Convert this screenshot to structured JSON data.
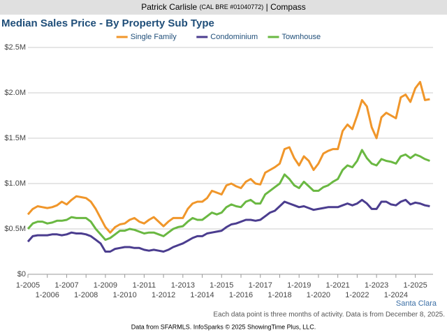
{
  "header": {
    "name": "Patrick Carlisle",
    "license": "(CAL BRE #01040772)",
    "company": "| Compass"
  },
  "chart_data": {
    "type": "line",
    "title": "Median Sales Price - By Property Sub Type",
    "region": "Santa Clara",
    "note": "Each data point is three months of activity. Data is from December 8, 2025.",
    "source": "Data from SFARMLS. InfoSparks © 2025 ShowingTime Plus, LLC.",
    "grid": true,
    "x": [
      "2005-01",
      "2005-04",
      "2005-07",
      "2005-10",
      "2006-01",
      "2006-04",
      "2006-07",
      "2006-10",
      "2007-01",
      "2007-04",
      "2007-07",
      "2007-10",
      "2008-01",
      "2008-04",
      "2008-07",
      "2008-10",
      "2009-01",
      "2009-04",
      "2009-07",
      "2009-10",
      "2010-01",
      "2010-04",
      "2010-07",
      "2010-10",
      "2011-01",
      "2011-04",
      "2011-07",
      "2011-10",
      "2012-01",
      "2012-04",
      "2012-07",
      "2012-10",
      "2013-01",
      "2013-04",
      "2013-07",
      "2013-10",
      "2014-01",
      "2014-04",
      "2014-07",
      "2014-10",
      "2015-01",
      "2015-04",
      "2015-07",
      "2015-10",
      "2016-01",
      "2016-04",
      "2016-07",
      "2016-10",
      "2017-01",
      "2017-04",
      "2017-07",
      "2017-10",
      "2018-01",
      "2018-04",
      "2018-07",
      "2018-10",
      "2019-01",
      "2019-04",
      "2019-07",
      "2019-10",
      "2020-01",
      "2020-04",
      "2020-07",
      "2020-10",
      "2021-01",
      "2021-04",
      "2021-07",
      "2021-10",
      "2022-01",
      "2022-04",
      "2022-07",
      "2022-10",
      "2023-01",
      "2023-04",
      "2023-07",
      "2023-10",
      "2024-01",
      "2024-04",
      "2024-07",
      "2024-10",
      "2025-01",
      "2025-04",
      "2025-07",
      "2025-10"
    ],
    "xlim": [
      "2005-01",
      "2025-12"
    ],
    "xticks": [
      {
        "value": "2005-01",
        "label": "1-2005"
      },
      {
        "value": "2006-01",
        "label": "1-2006"
      },
      {
        "value": "2007-01",
        "label": "1-2007"
      },
      {
        "value": "2008-01",
        "label": "1-2008"
      },
      {
        "value": "2009-01",
        "label": "1-2009"
      },
      {
        "value": "2010-01",
        "label": "1-2010"
      },
      {
        "value": "2011-01",
        "label": "1-2011"
      },
      {
        "value": "2012-01",
        "label": "1-2012"
      },
      {
        "value": "2013-01",
        "label": "1-2013"
      },
      {
        "value": "2014-01",
        "label": "1-2014"
      },
      {
        "value": "2015-01",
        "label": "1-2015"
      },
      {
        "value": "2016-01",
        "label": "1-2016"
      },
      {
        "value": "2017-01",
        "label": "1-2017"
      },
      {
        "value": "2018-01",
        "label": "1-2018"
      },
      {
        "value": "2019-01",
        "label": "1-2019"
      },
      {
        "value": "2020-01",
        "label": "1-2020"
      },
      {
        "value": "2021-01",
        "label": "1-2021"
      },
      {
        "value": "2022-01",
        "label": "1-2022"
      },
      {
        "value": "2023-01",
        "label": "1-2023"
      },
      {
        "value": "2024-01",
        "label": "1-2024"
      },
      {
        "value": "2025-01",
        "label": "1-2025"
      }
    ],
    "ylim": [
      0,
      2.5
    ],
    "yticks": [
      {
        "value": 0,
        "label": "$0"
      },
      {
        "value": 0.5,
        "label": "$0.5M"
      },
      {
        "value": 1,
        "label": "$1.0M"
      },
      {
        "value": 1.5,
        "label": "$1.5M"
      },
      {
        "value": 2,
        "label": "$2.0M"
      },
      {
        "value": 2.5,
        "label": "$2.5M"
      }
    ],
    "series": [
      {
        "name": "Single Family",
        "color": "#f0962a",
        "values": [
          0.66,
          0.72,
          0.75,
          0.74,
          0.73,
          0.74,
          0.76,
          0.8,
          0.77,
          0.82,
          0.86,
          0.85,
          0.84,
          0.8,
          0.72,
          0.62,
          0.52,
          0.46,
          0.52,
          0.55,
          0.56,
          0.6,
          0.62,
          0.58,
          0.56,
          0.6,
          0.63,
          0.58,
          0.53,
          0.58,
          0.62,
          0.62,
          0.62,
          0.72,
          0.78,
          0.8,
          0.8,
          0.84,
          0.92,
          0.9,
          0.88,
          0.98,
          1.0,
          0.97,
          0.95,
          1.02,
          1.05,
          1.0,
          0.99,
          1.12,
          1.15,
          1.18,
          1.22,
          1.38,
          1.4,
          1.28,
          1.2,
          1.3,
          1.25,
          1.15,
          1.22,
          1.33,
          1.36,
          1.38,
          1.38,
          1.58,
          1.65,
          1.6,
          1.75,
          1.92,
          1.85,
          1.62,
          1.5,
          1.73,
          1.78,
          1.75,
          1.72,
          1.95,
          1.98,
          1.9,
          2.05,
          2.12,
          1.92,
          1.93
        ]
      },
      {
        "name": "Condominium",
        "color": "#4b3d8f",
        "values": [
          0.36,
          0.42,
          0.43,
          0.43,
          0.43,
          0.44,
          0.44,
          0.43,
          0.44,
          0.46,
          0.45,
          0.45,
          0.44,
          0.42,
          0.38,
          0.34,
          0.25,
          0.25,
          0.28,
          0.29,
          0.3,
          0.3,
          0.29,
          0.29,
          0.27,
          0.26,
          0.27,
          0.26,
          0.25,
          0.27,
          0.3,
          0.32,
          0.34,
          0.37,
          0.4,
          0.42,
          0.42,
          0.45,
          0.46,
          0.47,
          0.48,
          0.52,
          0.55,
          0.56,
          0.58,
          0.6,
          0.6,
          0.59,
          0.6,
          0.64,
          0.68,
          0.7,
          0.75,
          0.8,
          0.78,
          0.76,
          0.74,
          0.75,
          0.73,
          0.71,
          0.72,
          0.73,
          0.74,
          0.74,
          0.74,
          0.76,
          0.78,
          0.76,
          0.78,
          0.82,
          0.78,
          0.72,
          0.72,
          0.8,
          0.8,
          0.77,
          0.76,
          0.8,
          0.82,
          0.77,
          0.79,
          0.78,
          0.76,
          0.75
        ]
      },
      {
        "name": "Townhouse",
        "color": "#6ab842",
        "values": [
          0.5,
          0.56,
          0.58,
          0.58,
          0.56,
          0.57,
          0.59,
          0.59,
          0.6,
          0.63,
          0.62,
          0.62,
          0.62,
          0.58,
          0.5,
          0.44,
          0.38,
          0.4,
          0.44,
          0.48,
          0.48,
          0.5,
          0.49,
          0.47,
          0.45,
          0.46,
          0.46,
          0.44,
          0.42,
          0.46,
          0.5,
          0.52,
          0.53,
          0.58,
          0.62,
          0.6,
          0.6,
          0.64,
          0.68,
          0.66,
          0.68,
          0.74,
          0.77,
          0.75,
          0.74,
          0.8,
          0.82,
          0.78,
          0.78,
          0.88,
          0.92,
          0.96,
          1.0,
          1.1,
          1.05,
          0.98,
          0.95,
          1.02,
          0.97,
          0.92,
          0.92,
          0.96,
          0.98,
          1.02,
          1.05,
          1.15,
          1.2,
          1.18,
          1.25,
          1.37,
          1.28,
          1.22,
          1.2,
          1.27,
          1.25,
          1.24,
          1.22,
          1.3,
          1.32,
          1.28,
          1.32,
          1.3,
          1.27,
          1.25
        ]
      }
    ]
  }
}
